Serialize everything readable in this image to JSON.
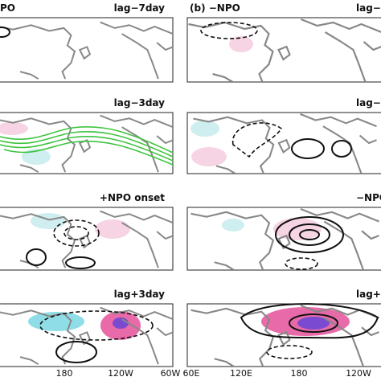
{
  "left_column": {
    "heading": "PO",
    "panels": [
      "lag−7day",
      "lag−3day",
      "+NPO onset",
      "lag+3day"
    ],
    "x_labels": [
      "180",
      "120W",
      "60W"
    ]
  },
  "right_column": {
    "heading": "(b) −NPO",
    "panels": [
      "lag−",
      "lag−",
      "−NPO",
      "lag+"
    ],
    "x_labels": [
      "60E",
      "120E",
      "180",
      "120W"
    ]
  }
}
